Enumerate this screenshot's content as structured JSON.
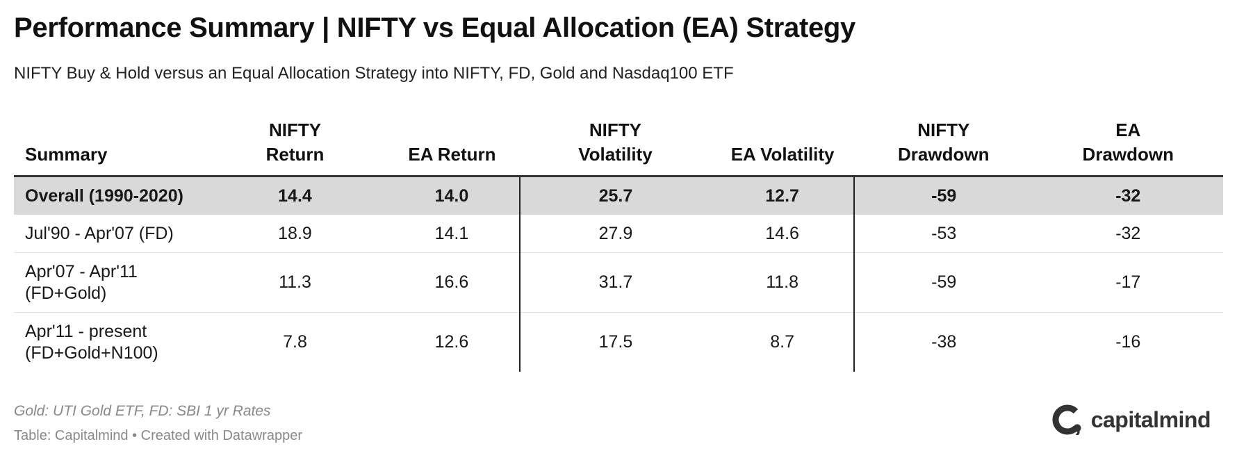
{
  "title": "Performance Summary | NIFTY vs Equal Allocation (EA) Strategy",
  "subtitle": "NIFTY Buy & Hold versus an Equal Allocation Strategy into NIFTY, FD, Gold and Nasdaq100 ETF",
  "footer": {
    "note": "Gold: UTI Gold ETF, FD: SBI 1 yr Rates",
    "source": "Table: Capitalmind • Created with Datawrapper",
    "logo_text": "capitalmind"
  },
  "chart_data": {
    "type": "table",
    "columns": [
      [
        "Summary"
      ],
      [
        "NIFTY",
        "Return"
      ],
      [
        "EA Return"
      ],
      [
        "NIFTY",
        "Volatility"
      ],
      [
        "EA Volatility"
      ],
      [
        "NIFTY",
        "Drawdown"
      ],
      [
        "EA",
        "Drawdown"
      ]
    ],
    "rows": [
      {
        "label": [
          "Overall (1990-2020)"
        ],
        "values": [
          "14.4",
          "14.0",
          "25.7",
          "12.7",
          "-59",
          "-32"
        ],
        "highlight": true
      },
      {
        "label": [
          "Jul'90 - Apr'07 (FD)"
        ],
        "values": [
          "18.9",
          "14.1",
          "27.9",
          "14.6",
          "-53",
          "-32"
        ]
      },
      {
        "label": [
          "Apr'07 - Apr'11",
          "(FD+Gold)"
        ],
        "values": [
          "11.3",
          "16.6",
          "31.7",
          "11.8",
          "-59",
          "-17"
        ]
      },
      {
        "label": [
          "Apr'11 - present",
          "(FD+Gold+N100)"
        ],
        "values": [
          "7.8",
          "12.6",
          "17.5",
          "8.7",
          "-38",
          "-16"
        ]
      }
    ],
    "colors": {
      "highlight_row": "#d9d9d9",
      "text": "#181818",
      "muted": "#888888"
    }
  }
}
